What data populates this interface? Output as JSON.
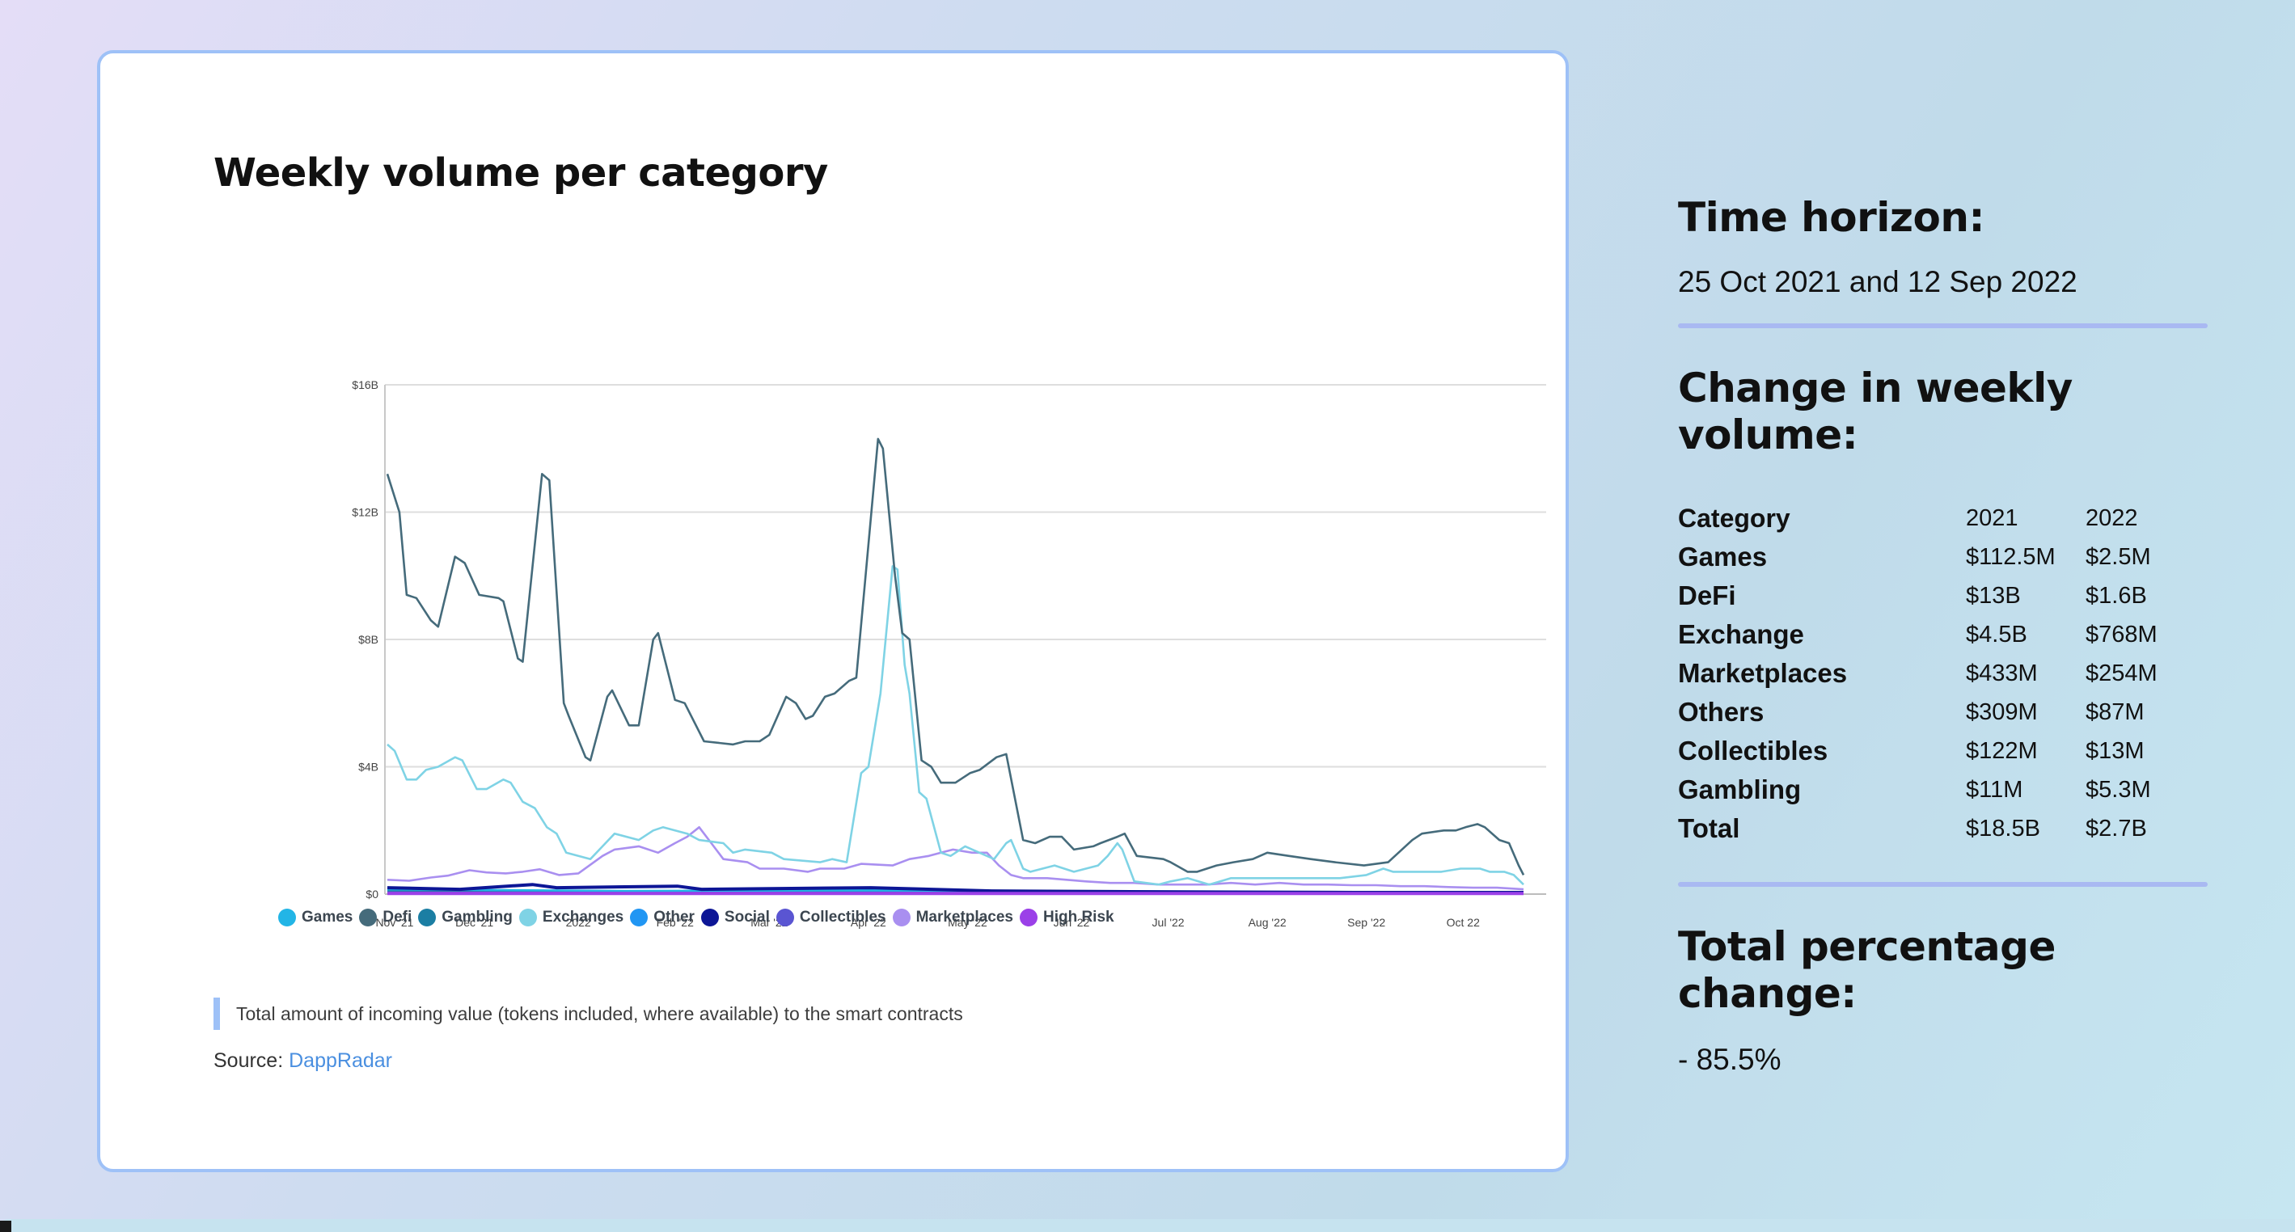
{
  "card": {
    "title": "Weekly volume per category",
    "caption": "Total amount of incoming value (tokens included, where available) to the smart contracts",
    "source_label": "Source:",
    "source_link": "DappRadar"
  },
  "chart_data": {
    "type": "line",
    "title": "",
    "xlabel": "",
    "ylabel": "",
    "ylim": [
      0,
      16
    ],
    "y_ticks": [
      "$0",
      "$4B",
      "$8B",
      "$12B",
      "$16B"
    ],
    "x_tick_labels": [
      "Nov '21",
      "Dec '21",
      "2022",
      "Feb '22",
      "Mar '22",
      "Apr '22",
      "May '22",
      "Jun '22",
      "Jul '22",
      "Aug '22",
      "Sep '22",
      "Oct 22"
    ],
    "x_tick_weeks": [
      0.3,
      3.6,
      7.9,
      11.9,
      15.8,
      19.9,
      24,
      28.3,
      32.3,
      36.4,
      40.5,
      44.5
    ],
    "x_weeks": 47,
    "grid": true,
    "legend_position": "bottom",
    "unit": "billions USD",
    "series": [
      {
        "name": "Games",
        "color": "#22b5e6",
        "points": [
          [
            0,
            0.15
          ],
          [
            10,
            0.1
          ],
          [
            20,
            0.12
          ],
          [
            30,
            0.08
          ],
          [
            40,
            0.06
          ],
          [
            47,
            0.05
          ]
        ]
      },
      {
        "name": "Defi",
        "color": "#456b7b",
        "points": [
          [
            0,
            13.2
          ],
          [
            0.5,
            12
          ],
          [
            0.8,
            9.4
          ],
          [
            1.2,
            9.3
          ],
          [
            1.8,
            8.6
          ],
          [
            2.1,
            8.4
          ],
          [
            2.8,
            10.6
          ],
          [
            3.2,
            10.4
          ],
          [
            3.8,
            9.4
          ],
          [
            4.6,
            9.3
          ],
          [
            4.8,
            9.2
          ],
          [
            5.4,
            7.4
          ],
          [
            5.6,
            7.3
          ],
          [
            6.4,
            13.2
          ],
          [
            6.7,
            13
          ],
          [
            7.3,
            6
          ],
          [
            7.5,
            5.6
          ],
          [
            8.2,
            4.3
          ],
          [
            8.4,
            4.2
          ],
          [
            9.1,
            6.2
          ],
          [
            9.3,
            6.4
          ],
          [
            10,
            5.3
          ],
          [
            10.4,
            5.3
          ],
          [
            11,
            8
          ],
          [
            11.2,
            8.2
          ],
          [
            11.9,
            6.1
          ],
          [
            12.3,
            6
          ],
          [
            13.1,
            4.8
          ],
          [
            14.3,
            4.7
          ],
          [
            14.8,
            4.8
          ],
          [
            15.4,
            4.8
          ],
          [
            15.8,
            5
          ],
          [
            16.5,
            6.2
          ],
          [
            16.9,
            6
          ],
          [
            17.3,
            5.5
          ],
          [
            17.6,
            5.6
          ],
          [
            18.1,
            6.2
          ],
          [
            18.5,
            6.3
          ],
          [
            19.1,
            6.7
          ],
          [
            19.4,
            6.8
          ],
          [
            20.3,
            14.3
          ],
          [
            20.5,
            14
          ],
          [
            21,
            10
          ],
          [
            21.3,
            8.2
          ],
          [
            21.6,
            8
          ],
          [
            22.1,
            4.2
          ],
          [
            22.5,
            4
          ],
          [
            22.9,
            3.5
          ],
          [
            23.5,
            3.5
          ],
          [
            24.1,
            3.8
          ],
          [
            24.5,
            3.9
          ],
          [
            25.2,
            4.3
          ],
          [
            25.6,
            4.4
          ],
          [
            26.3,
            1.7
          ],
          [
            26.8,
            1.6
          ],
          [
            27.4,
            1.8
          ],
          [
            27.9,
            1.8
          ],
          [
            28.4,
            1.4
          ],
          [
            29.2,
            1.5
          ],
          [
            29.5,
            1.6
          ],
          [
            30.2,
            1.8
          ],
          [
            30.5,
            1.9
          ],
          [
            31,
            1.2
          ],
          [
            32.1,
            1.1
          ],
          [
            32.4,
            1
          ],
          [
            33.1,
            0.7
          ],
          [
            33.5,
            0.7
          ],
          [
            34.3,
            0.9
          ],
          [
            35,
            1
          ],
          [
            35.8,
            1.1
          ],
          [
            36.4,
            1.3
          ],
          [
            37.3,
            1.2
          ],
          [
            38.2,
            1.1
          ],
          [
            39.2,
            1
          ],
          [
            40.4,
            0.9
          ],
          [
            41.4,
            1
          ],
          [
            42.4,
            1.7
          ],
          [
            42.8,
            1.9
          ],
          [
            43.7,
            2
          ],
          [
            44.2,
            2
          ],
          [
            44.6,
            2.1
          ],
          [
            45.1,
            2.2
          ],
          [
            45.4,
            2.1
          ],
          [
            46,
            1.7
          ],
          [
            46.4,
            1.6
          ],
          [
            46.8,
            0.9
          ],
          [
            47,
            0.6
          ]
        ]
      },
      {
        "name": "Gambling",
        "color": "#1b7ea3",
        "points": [
          [
            0,
            0.1
          ],
          [
            10,
            0.08
          ],
          [
            20,
            0.05
          ],
          [
            30,
            0.05
          ],
          [
            40,
            0.04
          ],
          [
            47,
            0.04
          ]
        ]
      },
      {
        "name": "Exchanges",
        "color": "#7fd3e5",
        "points": [
          [
            0,
            4.7
          ],
          [
            0.3,
            4.5
          ],
          [
            0.8,
            3.6
          ],
          [
            1.2,
            3.6
          ],
          [
            1.6,
            3.9
          ],
          [
            2.1,
            4
          ],
          [
            2.8,
            4.3
          ],
          [
            3.1,
            4.2
          ],
          [
            3.7,
            3.3
          ],
          [
            4.1,
            3.3
          ],
          [
            4.8,
            3.6
          ],
          [
            5.1,
            3.5
          ],
          [
            5.6,
            2.9
          ],
          [
            6.1,
            2.7
          ],
          [
            6.6,
            2.1
          ],
          [
            7,
            1.9
          ],
          [
            7.4,
            1.3
          ],
          [
            8.4,
            1.1
          ],
          [
            8.9,
            1.5
          ],
          [
            9.4,
            1.9
          ],
          [
            10.4,
            1.7
          ],
          [
            11,
            2
          ],
          [
            11.4,
            2.1
          ],
          [
            11.9,
            2
          ],
          [
            12.4,
            1.9
          ],
          [
            12.9,
            1.7
          ],
          [
            13.9,
            1.6
          ],
          [
            14.3,
            1.3
          ],
          [
            14.8,
            1.4
          ],
          [
            15.9,
            1.3
          ],
          [
            16.4,
            1.1
          ],
          [
            17.9,
            1
          ],
          [
            18.4,
            1.1
          ],
          [
            19,
            1
          ],
          [
            19.6,
            3.8
          ],
          [
            19.9,
            4
          ],
          [
            20.4,
            6.3
          ],
          [
            20.9,
            10.3
          ],
          [
            21.1,
            10.2
          ],
          [
            21.4,
            7.2
          ],
          [
            21.6,
            6.3
          ],
          [
            22,
            3.2
          ],
          [
            22.3,
            3
          ],
          [
            22.9,
            1.3
          ],
          [
            23.3,
            1.2
          ],
          [
            23.9,
            1.5
          ],
          [
            24.2,
            1.4
          ],
          [
            24.8,
            1.2
          ],
          [
            25.1,
            1.1
          ],
          [
            25.6,
            1.6
          ],
          [
            25.8,
            1.7
          ],
          [
            26.3,
            0.8
          ],
          [
            26.6,
            0.7
          ],
          [
            27.1,
            0.8
          ],
          [
            27.6,
            0.9
          ],
          [
            28.4,
            0.7
          ],
          [
            28.9,
            0.8
          ],
          [
            29.4,
            0.9
          ],
          [
            29.8,
            1.2
          ],
          [
            30.2,
            1.6
          ],
          [
            30.4,
            1.4
          ],
          [
            30.9,
            0.4
          ],
          [
            31.9,
            0.3
          ],
          [
            32.4,
            0.4
          ],
          [
            33.1,
            0.5
          ],
          [
            34,
            0.3
          ],
          [
            34.9,
            0.5
          ],
          [
            35.9,
            0.5
          ],
          [
            36.9,
            0.5
          ],
          [
            37.9,
            0.5
          ],
          [
            39.4,
            0.5
          ],
          [
            40.5,
            0.6
          ],
          [
            41.2,
            0.8
          ],
          [
            41.6,
            0.7
          ],
          [
            42.6,
            0.7
          ],
          [
            43.6,
            0.7
          ],
          [
            44.4,
            0.8
          ],
          [
            45.2,
            0.8
          ],
          [
            45.6,
            0.7
          ],
          [
            46.2,
            0.7
          ],
          [
            46.6,
            0.6
          ],
          [
            47,
            0.3
          ]
        ]
      },
      {
        "name": "Other",
        "color": "#2196f3",
        "points": [
          [
            0,
            0.08
          ],
          [
            10,
            0.06
          ],
          [
            20,
            0.06
          ],
          [
            30,
            0.04
          ],
          [
            40,
            0.04
          ],
          [
            47,
            0.03
          ]
        ]
      },
      {
        "name": "Social",
        "color": "#0d1696",
        "points": [
          [
            0,
            0.2
          ],
          [
            3,
            0.15
          ],
          [
            6,
            0.3
          ],
          [
            7,
            0.2
          ],
          [
            12,
            0.25
          ],
          [
            13,
            0.15
          ],
          [
            20,
            0.2
          ],
          [
            25,
            0.1
          ],
          [
            30,
            0.08
          ],
          [
            40,
            0.05
          ],
          [
            47,
            0.05
          ]
        ]
      },
      {
        "name": "Collectibles",
        "color": "#5a55d2",
        "points": [
          [
            0,
            0.05
          ],
          [
            10,
            0.04
          ],
          [
            20,
            0.04
          ],
          [
            30,
            0.03
          ],
          [
            40,
            0.02
          ],
          [
            47,
            0.02
          ]
        ]
      },
      {
        "name": "Marketplaces",
        "color": "#a98ff0",
        "points": [
          [
            0,
            0.45
          ],
          [
            0.9,
            0.42
          ],
          [
            1.8,
            0.52
          ],
          [
            2.5,
            0.58
          ],
          [
            3.4,
            0.75
          ],
          [
            4.1,
            0.68
          ],
          [
            4.9,
            0.65
          ],
          [
            5.6,
            0.7
          ],
          [
            6.3,
            0.78
          ],
          [
            7.1,
            0.6
          ],
          [
            7.9,
            0.65
          ],
          [
            8.9,
            1.2
          ],
          [
            9.4,
            1.4
          ],
          [
            10.4,
            1.5
          ],
          [
            11.2,
            1.3
          ],
          [
            11.9,
            1.6
          ],
          [
            12.4,
            1.8
          ],
          [
            12.9,
            2.1
          ],
          [
            13.4,
            1.6
          ],
          [
            13.9,
            1.1
          ],
          [
            14.9,
            1
          ],
          [
            15.4,
            0.8
          ],
          [
            16.4,
            0.8
          ],
          [
            17.4,
            0.7
          ],
          [
            17.9,
            0.8
          ],
          [
            18.9,
            0.8
          ],
          [
            19.6,
            0.95
          ],
          [
            20.9,
            0.9
          ],
          [
            21.6,
            1.1
          ],
          [
            22.4,
            1.2
          ],
          [
            22.9,
            1.3
          ],
          [
            23.4,
            1.4
          ],
          [
            24.2,
            1.3
          ],
          [
            24.8,
            1.3
          ],
          [
            25.3,
            0.9
          ],
          [
            25.8,
            0.6
          ],
          [
            26.3,
            0.5
          ],
          [
            27.3,
            0.5
          ],
          [
            28.9,
            0.4
          ],
          [
            29.9,
            0.35
          ],
          [
            30.9,
            0.35
          ],
          [
            31.9,
            0.3
          ],
          [
            33.9,
            0.3
          ],
          [
            34.9,
            0.35
          ],
          [
            35.9,
            0.3
          ],
          [
            36.9,
            0.35
          ],
          [
            37.9,
            0.3
          ],
          [
            38.9,
            0.3
          ],
          [
            39.9,
            0.28
          ],
          [
            40.9,
            0.28
          ],
          [
            41.9,
            0.25
          ],
          [
            42.9,
            0.25
          ],
          [
            43.9,
            0.22
          ],
          [
            44.9,
            0.2
          ],
          [
            45.9,
            0.2
          ],
          [
            47,
            0.15
          ]
        ]
      },
      {
        "name": "High Risk",
        "color": "#9b40e8",
        "points": [
          [
            0,
            0.02
          ],
          [
            47,
            0.02
          ]
        ]
      }
    ]
  },
  "panel": {
    "time_heading": "Time horizon:",
    "time_value": "25 Oct 2021 and 12 Sep 2022",
    "change_heading": "Change in weekly volume:",
    "table_headers": [
      "Category",
      "2021",
      "2022"
    ],
    "rows": [
      [
        "Games",
        "$112.5M",
        "$2.5M"
      ],
      [
        "DeFi",
        "$13B",
        "$1.6B"
      ],
      [
        "Exchange",
        "$4.5B",
        "$768M"
      ],
      [
        "Marketplaces",
        "$433M",
        "$254M"
      ],
      [
        "Others",
        "$309M",
        "$87M"
      ],
      [
        "Collectibles",
        "$122M",
        "$13M"
      ],
      [
        "Gambling",
        "$11M",
        "$5.3M"
      ],
      [
        "Total",
        "$18.5B",
        "$2.7B"
      ]
    ],
    "total_heading": "Total percentage change:",
    "total_value": "- 85.5%"
  }
}
